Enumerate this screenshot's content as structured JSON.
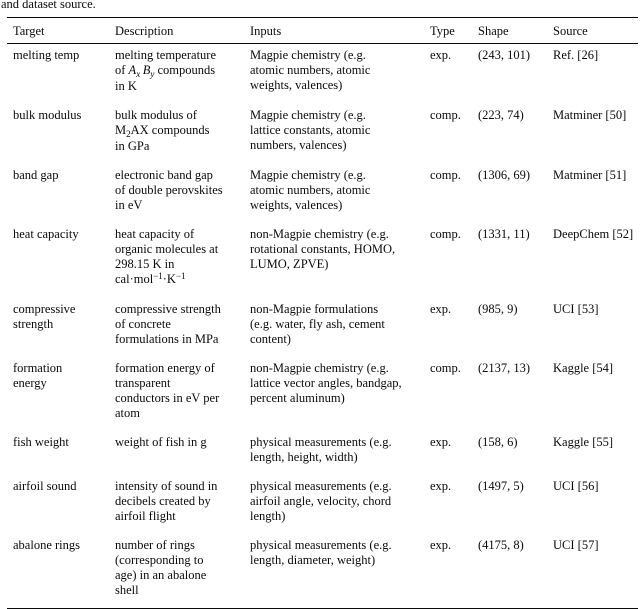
{
  "caption_fragment": "and dataset source.",
  "table": {
    "columns": [
      "Target",
      "Description",
      "Inputs",
      "Type",
      "Shape",
      "Source"
    ],
    "rows": [
      {
        "target": [
          "melting temp"
        ],
        "description": [
          "melting temperature",
          [
            {
              "s": "t",
              "v": "of "
            },
            {
              "s": "i",
              "v": "A"
            },
            {
              "s": "isub",
              "v": "x"
            },
            {
              "s": "t",
              "v": " "
            },
            {
              "s": "i",
              "v": "B"
            },
            {
              "s": "isub",
              "v": "y"
            },
            {
              "s": "t",
              "v": " compounds"
            }
          ],
          "in K"
        ],
        "inputs": [
          "Magpie chemistry (e.g.",
          "atomic numbers, atomic",
          "weights, valences)"
        ],
        "type": "exp.",
        "shape": "(243, 101)",
        "source": "Ref. [26]"
      },
      {
        "target": [
          "bulk modulus"
        ],
        "description": [
          "bulk modulus of",
          [
            {
              "s": "t",
              "v": "M"
            },
            {
              "s": "sub",
              "v": "2"
            },
            {
              "s": "t",
              "v": "AX compounds"
            }
          ],
          "in GPa"
        ],
        "inputs": [
          "Magpie chemistry (e.g.",
          "lattice constants, atomic",
          "numbers, valences)"
        ],
        "type": "comp.",
        "shape": "(223, 74)",
        "source": "Matminer [50]"
      },
      {
        "target": [
          "band gap"
        ],
        "description": [
          "electronic band gap",
          "of double perovskites",
          "in eV"
        ],
        "inputs": [
          "Magpie chemistry (e.g.",
          "atomic numbers, atomic",
          "weights, valences)"
        ],
        "type": "comp.",
        "shape": "(1306, 69)",
        "source": "Matminer [51]"
      },
      {
        "target": [
          "heat capacity"
        ],
        "description": [
          "heat capacity of",
          "organic molecules at",
          "298.15 K in",
          [
            {
              "s": "t",
              "v": "cal·mol"
            },
            {
              "s": "sup",
              "v": "−1"
            },
            {
              "s": "t",
              "v": "·K"
            },
            {
              "s": "sup",
              "v": "−1"
            }
          ]
        ],
        "inputs": [
          "non-Magpie chemistry (e.g.",
          "rotational constants, HOMO,",
          "LUMO, ZPVE)"
        ],
        "type": "comp.",
        "shape": "(1331, 11)",
        "source": "DeepChem [52]"
      },
      {
        "target": [
          "compressive",
          "strength"
        ],
        "description": [
          "compressive strength",
          "of concrete",
          "formulations in MPa"
        ],
        "inputs": [
          "non-Magpie formulations",
          "(e.g. water, fly ash, cement",
          "content)"
        ],
        "type": "exp.",
        "shape": "(985, 9)",
        "source": "UCI [53]"
      },
      {
        "target": [
          "formation",
          "energy"
        ],
        "description": [
          "formation energy of",
          "transparent",
          "conductors in eV per",
          "atom"
        ],
        "inputs": [
          "non-Magpie chemistry (e.g.",
          "lattice vector angles, bandgap,",
          "percent aluminum)"
        ],
        "type": "comp.",
        "shape": "(2137, 13)",
        "source": "Kaggle [54]"
      },
      {
        "target": [
          "fish weight"
        ],
        "description": [
          "weight of fish in g"
        ],
        "inputs": [
          "physical measurements (e.g.",
          "length, height, width)"
        ],
        "type": "exp.",
        "shape": "(158, 6)",
        "source": "Kaggle [55]"
      },
      {
        "target": [
          "airfoil sound"
        ],
        "description": [
          "intensity of sound in",
          "decibels created by",
          "airfoil flight"
        ],
        "inputs": [
          "physical measurements (e.g.",
          "airfoil angle, velocity, chord",
          "length)"
        ],
        "type": "exp.",
        "shape": "(1497, 5)",
        "source": "UCI [56]"
      },
      {
        "target": [
          "abalone rings"
        ],
        "description": [
          "number of rings",
          "(corresponding to",
          "age) in an abalone",
          "shell"
        ],
        "inputs": [
          "physical measurements (e.g.",
          "length, diameter, weight)"
        ],
        "type": "exp.",
        "shape": "(4175, 8)",
        "source": "UCI [57]"
      }
    ]
  }
}
